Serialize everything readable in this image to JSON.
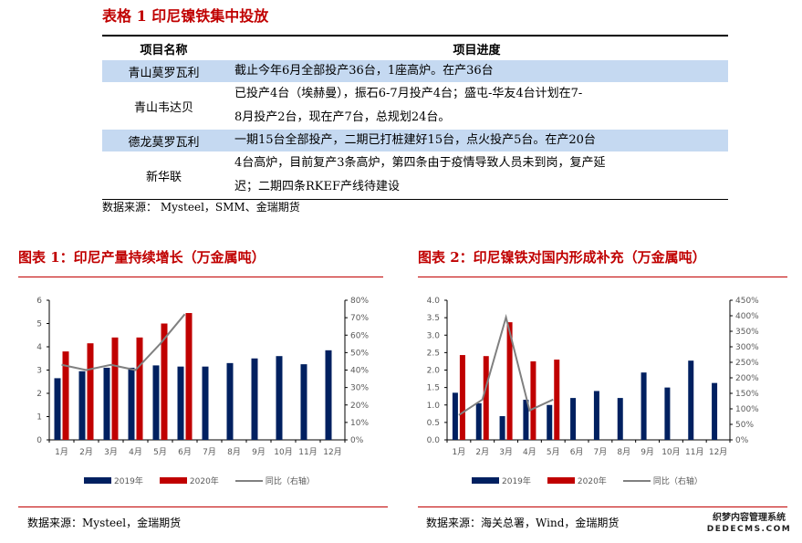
{
  "table1": {
    "title": "表格 1 印尼镍铁集中投放",
    "headers": [
      "项目名称",
      "项目进度"
    ],
    "rows": [
      {
        "name": "青山莫罗瓦利",
        "lines": [
          "截止今年6月全部投产36台，1座高炉。在产36台"
        ],
        "shaded": true
      },
      {
        "name": "青山韦达贝",
        "lines": [
          "已投产4台（埃赫曼），振石6-7月投产4台；盛屯-华友4台计划在7-",
          "8月投产2台，现在产7台，总规划24台。"
        ],
        "shaded": false
      },
      {
        "name": "德龙莫罗瓦利",
        "lines": [
          "一期15台全部投产，二期已打桩建好15台，点火投产5台。在产20台"
        ],
        "shaded": true
      },
      {
        "name": "新华联",
        "lines": [
          "4台高炉，目前复产3条高炉，第四条由于疫情导致人员未到岗，复产延",
          "迟；二期四条RKEF产线待建设"
        ],
        "shaded": false
      }
    ],
    "source": "数据来源：  Mysteel，SMM、金瑞期货"
  },
  "figure1": {
    "title": "图表 1：印尼产量持续增长（万金属吨）",
    "source": "数据来源：Mysteel，金瑞期货"
  },
  "figure2": {
    "title": "图表 2：印尼镍铁对国内形成补充（万金属吨）",
    "source": "数据来源：海关总署，Wind，金瑞期货"
  },
  "watermark": {
    "line1": "织梦内容管理系统",
    "line2": "DEDECMS.COM"
  },
  "colors": {
    "navy": "#002060",
    "red": "#c00000",
    "gray": "#808080",
    "shade": "#c5d9f1",
    "title_red": "#c00000"
  },
  "chart_data": [
    {
      "type": "bar",
      "title": "图表 1：印尼产量持续增长（万金属吨）",
      "categories": [
        "1月",
        "2月",
        "3月",
        "4月",
        "5月",
        "6月",
        "7月",
        "8月",
        "9月",
        "10月",
        "11月",
        "12月"
      ],
      "series": [
        {
          "name": "2019年",
          "axis": "left",
          "color": "#002060",
          "values": [
            2.65,
            2.95,
            3.1,
            3.1,
            3.2,
            3.15,
            3.15,
            3.3,
            3.5,
            3.6,
            3.25,
            3.85
          ]
        },
        {
          "name": "2020年",
          "axis": "left",
          "color": "#c00000",
          "values": [
            3.8,
            4.15,
            4.4,
            4.4,
            5.0,
            5.45,
            null,
            null,
            null,
            null,
            null,
            null
          ]
        },
        {
          "name": "同比（右轴）",
          "axis": "right",
          "type": "line",
          "color": "#808080",
          "values": [
            43,
            40,
            43,
            40,
            55,
            72,
            null,
            null,
            null,
            null,
            null,
            null
          ]
        }
      ],
      "ylim": [
        0,
        6
      ],
      "yticks": [
        "0",
        "1",
        "2",
        "3",
        "4",
        "5",
        "6"
      ],
      "y2lim": [
        0,
        80
      ],
      "y2ticks": [
        "0%",
        "10%",
        "20%",
        "30%",
        "40%",
        "50%",
        "60%",
        "70%",
        "80%"
      ],
      "xlabel": "",
      "ylabel": "",
      "legend_position": "bottom",
      "grid": false
    },
    {
      "type": "bar",
      "title": "图表 2：印尼镍铁对国内形成补充（万金属吨）",
      "categories": [
        "1月",
        "2月",
        "3月",
        "4月",
        "5月",
        "6月",
        "7月",
        "8月",
        "9月",
        "10月",
        "11月",
        "12月"
      ],
      "series": [
        {
          "name": "2019年",
          "axis": "left",
          "color": "#002060",
          "values": [
            1.35,
            1.05,
            0.68,
            1.15,
            1.0,
            1.2,
            1.4,
            1.2,
            1.93,
            1.5,
            2.27,
            1.63
          ]
        },
        {
          "name": "2020年",
          "axis": "left",
          "color": "#c00000",
          "values": [
            2.43,
            2.4,
            3.37,
            2.25,
            2.3,
            null,
            null,
            null,
            null,
            null,
            null,
            null
          ]
        },
        {
          "name": "同比（右轴）",
          "axis": "right",
          "type": "line",
          "color": "#808080",
          "values": [
            80,
            130,
            395,
            95,
            130,
            null,
            null,
            null,
            null,
            null,
            null,
            null
          ]
        }
      ],
      "ylim": [
        0,
        4.0
      ],
      "yticks": [
        "0.0",
        "0.5",
        "1.0",
        "1.5",
        "2.0",
        "2.5",
        "3.0",
        "3.5",
        "4.0"
      ],
      "y2lim": [
        0,
        450
      ],
      "y2ticks": [
        "0%",
        "50%",
        "100%",
        "150%",
        "200%",
        "250%",
        "300%",
        "350%",
        "400%",
        "450%"
      ],
      "xlabel": "",
      "ylabel": "",
      "legend_position": "bottom",
      "grid": false
    }
  ]
}
